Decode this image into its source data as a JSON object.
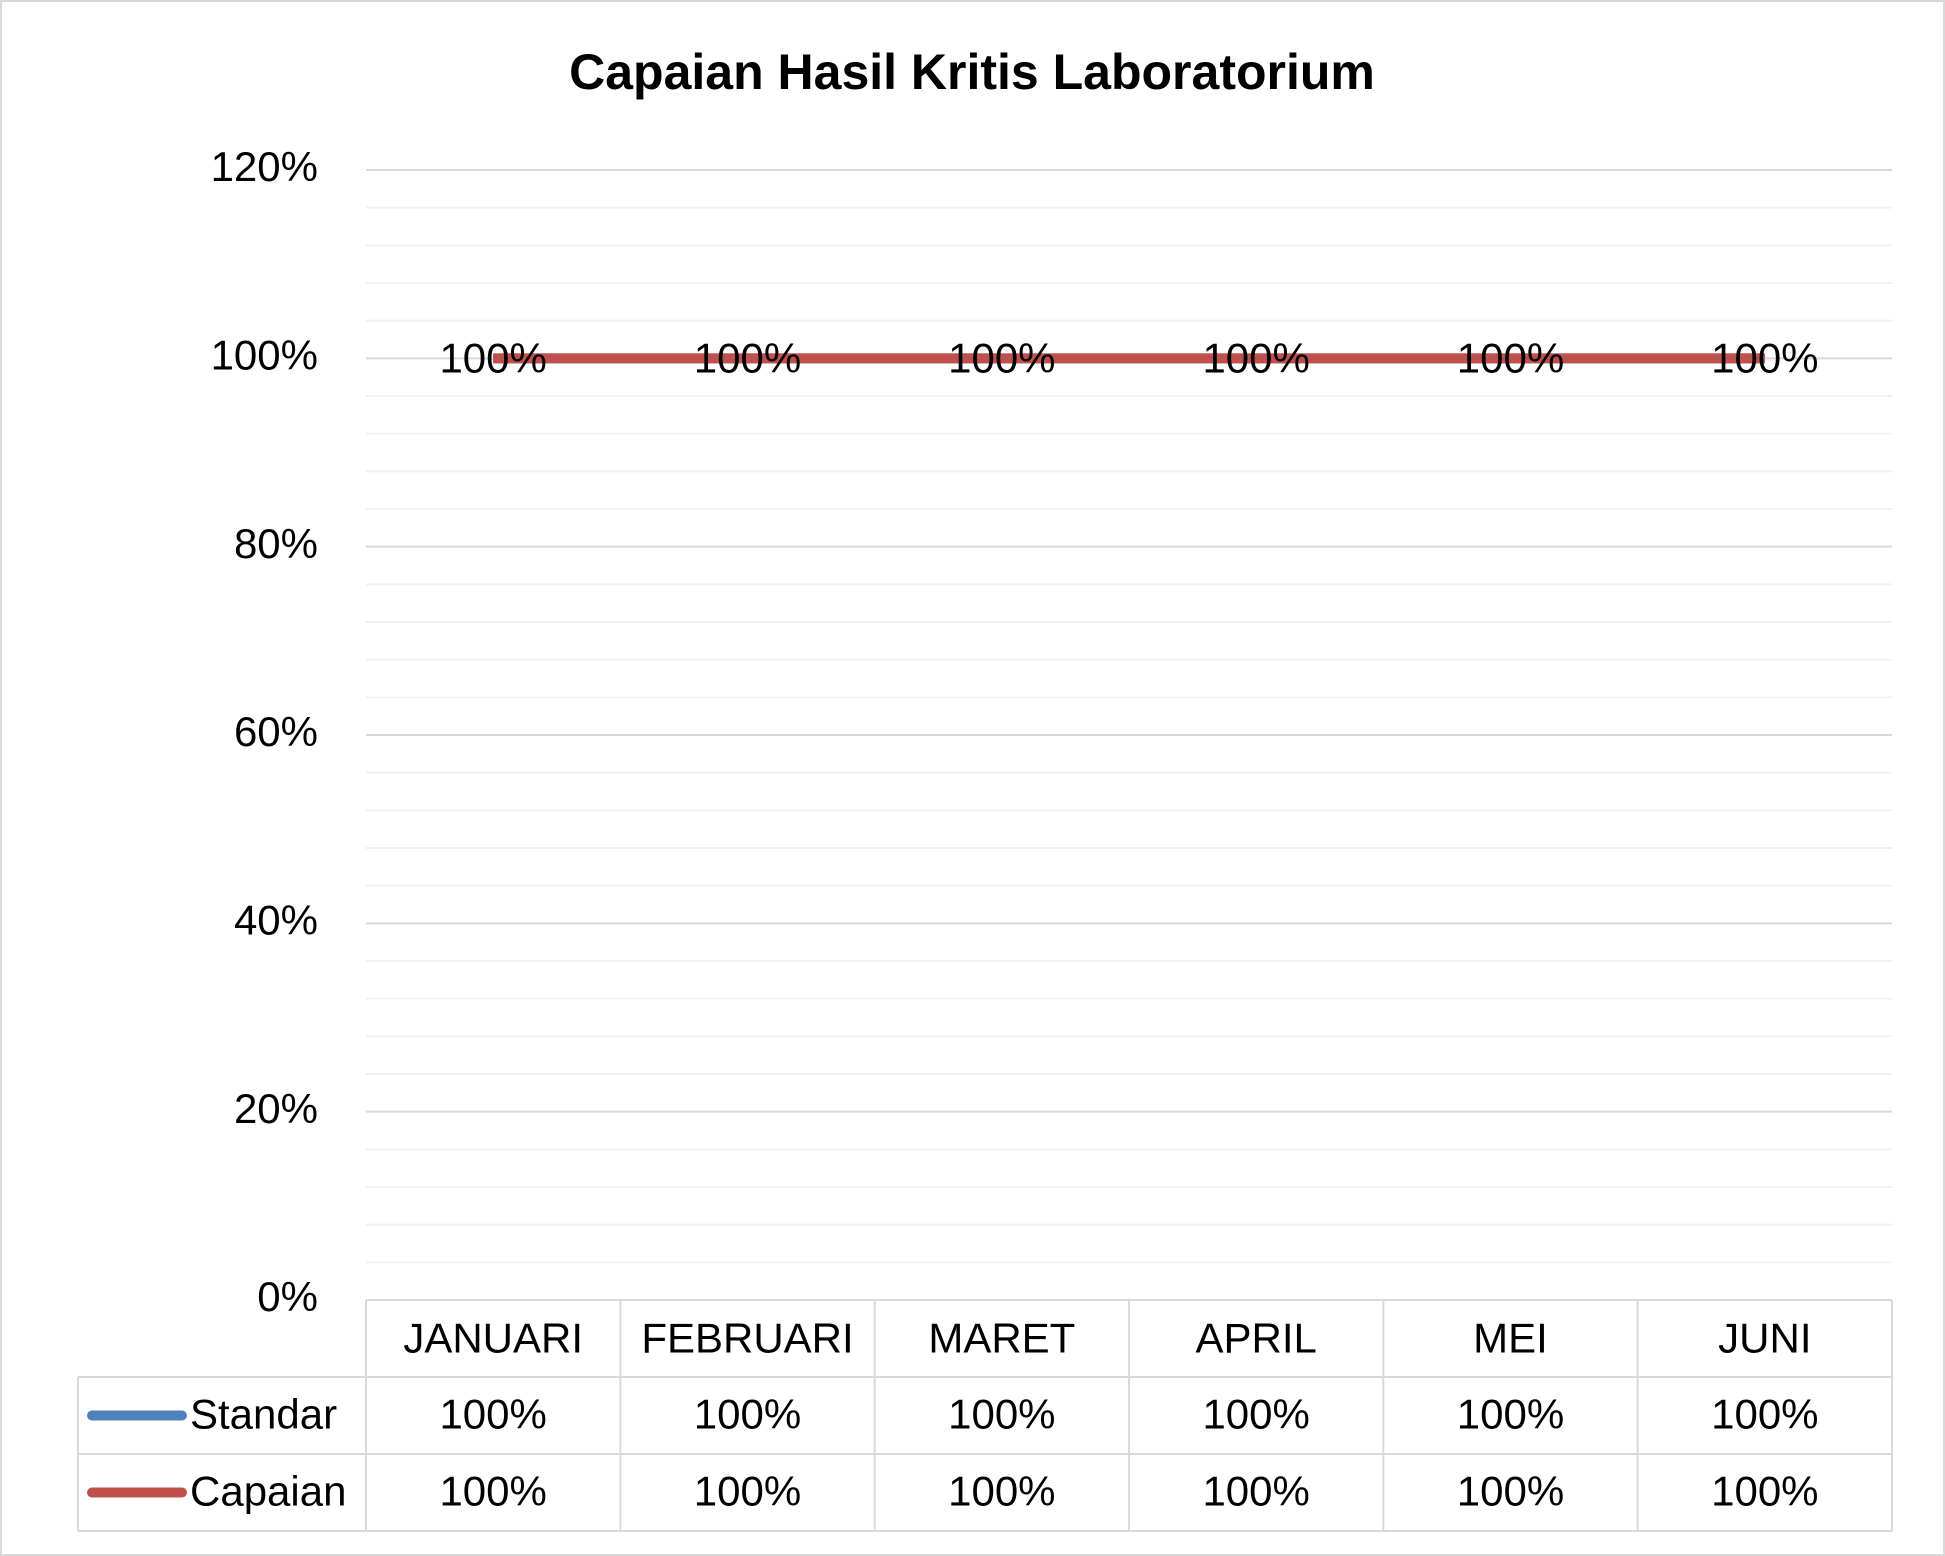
{
  "chart_data": {
    "type": "line",
    "title": "Capaian Hasil Kritis Laboratorium",
    "categories": [
      "JANUARI",
      "FEBRUARI",
      "MARET",
      "APRIL",
      "MEI",
      "JUNI"
    ],
    "series": [
      {
        "name": "Standar",
        "color": "#4f81bd",
        "values": [
          100,
          100,
          100,
          100,
          100,
          100
        ],
        "value_labels": [
          "100%",
          "100%",
          "100%",
          "100%",
          "100%",
          "100%"
        ],
        "data_labels": false
      },
      {
        "name": "Capaian",
        "color": "#c0504d",
        "values": [
          100,
          100,
          100,
          100,
          100,
          100
        ],
        "value_labels": [
          "100%",
          "100%",
          "100%",
          "100%",
          "100%",
          "100%"
        ],
        "data_labels": true
      }
    ],
    "ylim": [
      0,
      120
    ],
    "yticks": [
      {
        "value": 0,
        "label": "0%"
      },
      {
        "value": 20,
        "label": "20%"
      },
      {
        "value": 40,
        "label": "40%"
      },
      {
        "value": 60,
        "label": "60%"
      },
      {
        "value": 80,
        "label": "80%"
      },
      {
        "value": 100,
        "label": "100%"
      },
      {
        "value": 120,
        "label": "120%"
      }
    ],
    "grid": true,
    "minor_grid": true,
    "data_table": true
  }
}
